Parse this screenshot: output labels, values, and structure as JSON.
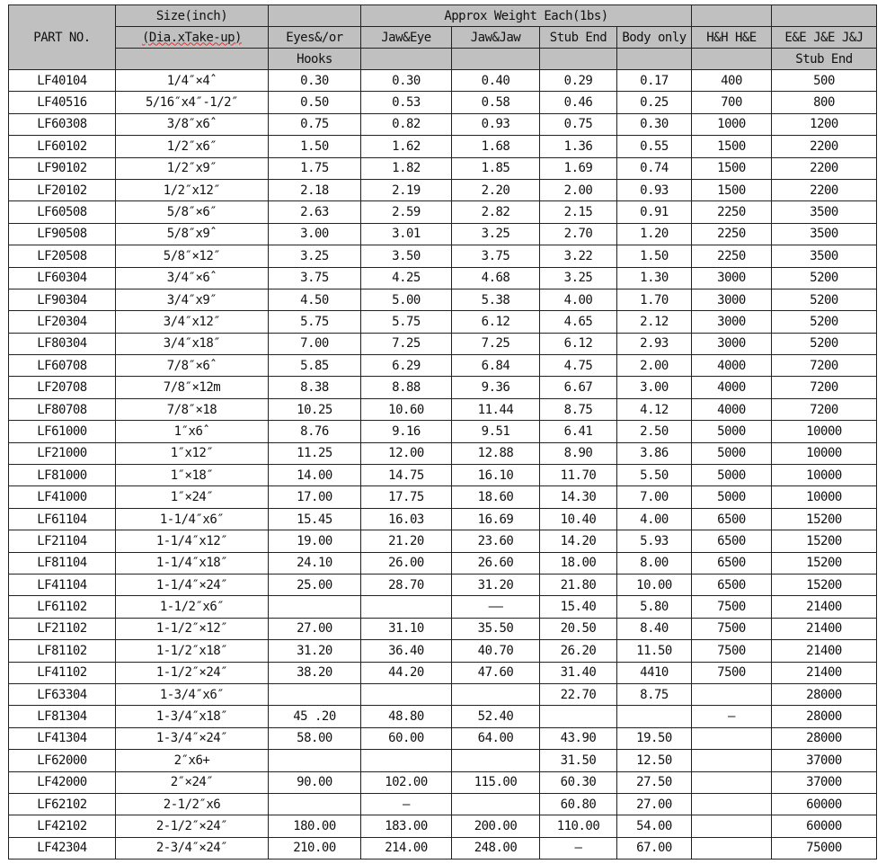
{
  "header": {
    "part_no": "PART  NO.",
    "size": "Size(inch)",
    "size_sub": "(Dia.xTake-up)",
    "approx_weight": "Approx Weight Each(1bs)",
    "eyes_or": "Eyes&/or",
    "hooks": "Hooks",
    "jaw_eye": "Jaw&Eye",
    "jaw_jaw": "Jaw&Jaw",
    "stub_end": "Stub End",
    "body_only": "Body only",
    "hh_he": "H&H H&E",
    "ee_je_jj": "E&E J&E J&J",
    "stub_end2": "Stub End"
  },
  "rows": [
    [
      "LF40104",
      "1/4″×4ˆ",
      "0.30",
      "0.30",
      "0.40",
      "0.29",
      "0.17",
      "400",
      "500"
    ],
    [
      "LF40516",
      "5/16″x4″-1/2″",
      "0.50",
      "0.53",
      "0.58",
      "0.46",
      "0.25",
      "700",
      "800"
    ],
    [
      "LF60308",
      "3/8″x6ˆ",
      "0.75",
      "0.82",
      "0.93",
      "0.75",
      "0.30",
      "1000",
      "1200"
    ],
    [
      "LF60102",
      "1/2″x6″",
      "1.50",
      "1.62",
      "1.68",
      "1.36",
      "0.55",
      "1500",
      "2200"
    ],
    [
      "LF90102",
      "1/2″x9″",
      "1.75",
      "1.82",
      "1.85",
      "1.69",
      "0.74",
      "1500",
      "2200"
    ],
    [
      "LF20102",
      "1/2″x12″",
      "2.18",
      "2.19",
      "2.20",
      "2.00",
      "0.93",
      "1500",
      "2200"
    ],
    [
      "LF60508",
      "5/8″×6″",
      "2.63",
      "2.59",
      "2.82",
      "2.15",
      "0.91",
      "2250",
      "3500"
    ],
    [
      "LF90508",
      "5/8″x9ˆ",
      "3.00",
      "3.01",
      "3.25",
      "2.70",
      "1.20",
      "2250",
      "3500"
    ],
    [
      "LF20508",
      "5/8″×12″",
      "3.25",
      "3.50",
      "3.75",
      "3.22",
      "1.50",
      "2250",
      "3500"
    ],
    [
      "LF60304",
      "3/4″×6ˆ",
      "3.75",
      "4.25",
      "4.68",
      "3.25",
      "1.30",
      "3000",
      "5200"
    ],
    [
      "LF90304",
      "3/4″x9″",
      "4.50",
      "5.00",
      "5.38",
      "4.00",
      "1.70",
      "3000",
      "5200"
    ],
    [
      "LF20304",
      "3/4″x12″",
      "5.75",
      "5.75",
      "6.12",
      "4.65",
      "2.12",
      "3000",
      "5200"
    ],
    [
      "LF80304",
      "3/4″x18″",
      "7.00",
      "7.25",
      "7.25",
      "6.12",
      "2.93",
      "3000",
      "5200"
    ],
    [
      "LF60708",
      "7/8″×6ˆ",
      "5.85",
      "6.29",
      "6.84",
      "4.75",
      "2.00",
      "4000",
      "7200"
    ],
    [
      "LF20708",
      "7/8″×12m",
      "8.38",
      "8.88",
      "9.36",
      "6.67",
      "3.00",
      "4000",
      "7200"
    ],
    [
      "LF80708",
      "7/8″×18",
      "10.25",
      "10.60",
      "11.44",
      "8.75",
      "4.12",
      "4000",
      "7200"
    ],
    [
      "LF61000",
      "1″x6ˆ",
      "8.76",
      "9.16",
      "9.51",
      "6.41",
      "2.50",
      "5000",
      "10000"
    ],
    [
      "LF21000",
      "1″x12″",
      "11.25",
      "12.00",
      "12.88",
      "8.90",
      "3.86",
      "5000",
      "10000"
    ],
    [
      "LF81000",
      "1″×18″",
      "14.00",
      "14.75",
      "16.10",
      "11.70",
      "5.50",
      "5000",
      "10000"
    ],
    [
      "LF41000",
      "1″×24″",
      "17.00",
      "17.75",
      "18.60",
      "14.30",
      "7.00",
      "5000",
      "10000"
    ],
    [
      "LF61104",
      "1-1/4″x6″",
      "15.45",
      "16.03",
      "16.69",
      "10.40",
      "4.00",
      "6500",
      "15200"
    ],
    [
      "LF21104",
      "1-1/4″x12″",
      "19.00",
      "21.20",
      "23.60",
      "14.20",
      "5.93",
      "6500",
      "15200"
    ],
    [
      "LF81104",
      "1-1/4″x18″",
      "24.10",
      "26.00",
      "26.60",
      "18.00",
      "8.00",
      "6500",
      "15200"
    ],
    [
      "LF41104",
      "1-1/4″×24″",
      "25.00",
      "28.70",
      "31.20",
      "21.80",
      "10.00",
      "6500",
      "15200"
    ],
    [
      "LF61102",
      "1-1/2″x6″",
      "",
      "",
      "——",
      "15.40",
      "5.80",
      "7500",
      "21400"
    ],
    [
      "LF21102",
      "1-1/2″×12″",
      "27.00",
      "31.10",
      "35.50",
      "20.50",
      "8.40",
      "7500",
      "21400"
    ],
    [
      "LF81102",
      "1-1/2″x18″",
      "31.20",
      "36.40",
      "40.70",
      "26.20",
      "11.50",
      "7500",
      "21400"
    ],
    [
      "LF41102",
      "1-1/2″×24″",
      "38.20",
      "44.20",
      "47.60",
      "31.40",
      "4410",
      "7500",
      "21400"
    ],
    [
      "LF63304",
      "1-3/4″x6″",
      "",
      "",
      "",
      "22.70",
      "8.75",
      "",
      "28000"
    ],
    [
      "LF81304",
      "1-3/4″x18″",
      "45 .20",
      "48.80",
      "52.40",
      "",
      "",
      "—",
      "28000"
    ],
    [
      "LF41304",
      "1-3/4″×24″",
      "58.00",
      "60.00",
      "64.00",
      "43.90",
      "19.50",
      "",
      "28000"
    ],
    [
      "LF62000",
      "2″x6+",
      "",
      "",
      "",
      "31.50",
      "12.50",
      "",
      "37000"
    ],
    [
      "LF42000",
      "2″×24″",
      "90.00",
      "102.00",
      "115.00",
      "60.30",
      "27.50",
      "",
      "37000"
    ],
    [
      "LF62102",
      "2-1/2″x6",
      "",
      "—",
      "",
      "60.80",
      "27.00",
      "",
      "60000"
    ],
    [
      "LF42102",
      "2-1/2″×24″",
      "180.00",
      "183.00",
      "200.00",
      "110.00",
      "54.00",
      "",
      "60000"
    ],
    [
      "LF42304",
      "2-3/4″×24″",
      "210.00",
      "214.00",
      "248.00",
      "—",
      "67.00",
      "",
      "75000"
    ]
  ]
}
